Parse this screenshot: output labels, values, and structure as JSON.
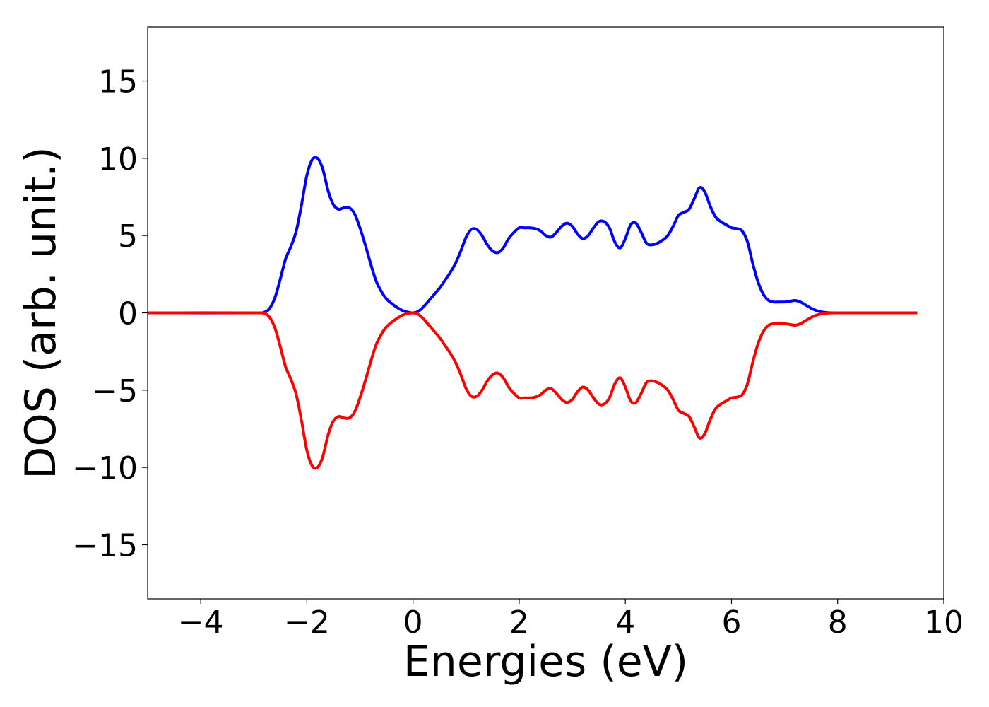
{
  "chart_data": {
    "type": "line",
    "title": "",
    "xlabel": "Energies (eV)",
    "ylabel": "DOS (arb. unit.)",
    "xlim": [
      -5,
      10
    ],
    "ylim": [
      -18.5,
      18.5
    ],
    "xticks": [
      -4,
      -2,
      0,
      2,
      4,
      6,
      8,
      10
    ],
    "xtick_labels": [
      "−4",
      "−2",
      "0",
      "2",
      "4",
      "6",
      "8",
      "10"
    ],
    "yticks": [
      -15,
      -10,
      -5,
      0,
      5,
      10,
      15
    ],
    "ytick_labels": [
      "−15",
      "−10",
      "−5",
      "0",
      "5",
      "10",
      "15"
    ],
    "grid": false,
    "legend": "none",
    "series": [
      {
        "color": "#0000ff",
        "x": [
          -5.0,
          -3.0,
          -2.8,
          -2.7,
          -2.6,
          -2.5,
          -2.4,
          -2.3,
          -2.2,
          -2.1,
          -2.0,
          -1.9,
          -1.8,
          -1.7,
          -1.6,
          -1.5,
          -1.4,
          -1.3,
          -1.2,
          -1.1,
          -1.0,
          -0.9,
          -0.8,
          -0.7,
          -0.6,
          -0.5,
          -0.4,
          -0.3,
          -0.2,
          -0.1,
          0.0,
          0.1,
          0.2,
          0.3,
          0.4,
          0.5,
          0.6,
          0.7,
          0.8,
          0.9,
          1.0,
          1.1,
          1.2,
          1.3,
          1.4,
          1.5,
          1.6,
          1.7,
          1.8,
          1.9,
          2.0,
          2.1,
          2.2,
          2.3,
          2.4,
          2.5,
          2.6,
          2.7,
          2.8,
          2.9,
          3.0,
          3.1,
          3.2,
          3.3,
          3.4,
          3.5,
          3.6,
          3.7,
          3.8,
          3.9,
          4.0,
          4.1,
          4.2,
          4.3,
          4.4,
          4.5,
          4.6,
          4.7,
          4.8,
          4.9,
          5.0,
          5.1,
          5.2,
          5.3,
          5.4,
          5.5,
          5.6,
          5.7,
          5.8,
          5.9,
          6.0,
          6.1,
          6.2,
          6.3,
          6.4,
          6.5,
          6.6,
          6.7,
          6.8,
          6.9,
          7.0,
          7.1,
          7.2,
          7.3,
          7.4,
          7.5,
          7.6,
          7.7,
          7.8,
          8.0,
          9.5
        ],
        "y": [
          0.0,
          0.0,
          0.05,
          0.3,
          1.0,
          2.2,
          3.5,
          4.3,
          5.3,
          7.0,
          8.9,
          9.9,
          10.0,
          9.3,
          7.9,
          7.0,
          6.7,
          6.8,
          6.8,
          6.4,
          5.5,
          4.4,
          3.2,
          2.1,
          1.4,
          0.9,
          0.6,
          0.35,
          0.15,
          0.05,
          0.0,
          0.1,
          0.4,
          0.8,
          1.2,
          1.6,
          2.1,
          2.6,
          3.2,
          4.0,
          4.9,
          5.4,
          5.4,
          5.0,
          4.4,
          4.0,
          3.9,
          4.2,
          4.8,
          5.2,
          5.5,
          5.5,
          5.5,
          5.45,
          5.3,
          5.0,
          4.9,
          5.2,
          5.6,
          5.8,
          5.6,
          5.1,
          4.8,
          5.0,
          5.5,
          5.9,
          5.9,
          5.5,
          4.6,
          4.2,
          4.8,
          5.7,
          5.8,
          5.2,
          4.5,
          4.4,
          4.5,
          4.7,
          5.0,
          5.6,
          6.3,
          6.5,
          6.7,
          7.4,
          8.1,
          7.8,
          6.9,
          6.2,
          5.9,
          5.7,
          5.5,
          5.45,
          5.3,
          4.6,
          3.2,
          2.0,
          1.2,
          0.8,
          0.7,
          0.7,
          0.7,
          0.75,
          0.8,
          0.7,
          0.5,
          0.3,
          0.15,
          0.06,
          0.02,
          0.0,
          0.0
        ]
      },
      {
        "color": "#ff0000",
        "x": [
          -5.0,
          -3.0,
          -2.8,
          -2.7,
          -2.6,
          -2.5,
          -2.4,
          -2.3,
          -2.2,
          -2.1,
          -2.0,
          -1.9,
          -1.8,
          -1.7,
          -1.6,
          -1.5,
          -1.4,
          -1.3,
          -1.2,
          -1.1,
          -1.0,
          -0.9,
          -0.8,
          -0.7,
          -0.6,
          -0.5,
          -0.4,
          -0.3,
          -0.2,
          -0.1,
          0.0,
          0.1,
          0.2,
          0.3,
          0.4,
          0.5,
          0.6,
          0.7,
          0.8,
          0.9,
          1.0,
          1.1,
          1.2,
          1.3,
          1.4,
          1.5,
          1.6,
          1.7,
          1.8,
          1.9,
          2.0,
          2.1,
          2.2,
          2.3,
          2.4,
          2.5,
          2.6,
          2.7,
          2.8,
          2.9,
          3.0,
          3.1,
          3.2,
          3.3,
          3.4,
          3.5,
          3.6,
          3.7,
          3.8,
          3.9,
          4.0,
          4.1,
          4.2,
          4.3,
          4.4,
          4.5,
          4.6,
          4.7,
          4.8,
          4.9,
          5.0,
          5.1,
          5.2,
          5.3,
          5.4,
          5.5,
          5.6,
          5.7,
          5.8,
          5.9,
          6.0,
          6.1,
          6.2,
          6.3,
          6.4,
          6.5,
          6.6,
          6.7,
          6.8,
          6.9,
          7.0,
          7.1,
          7.2,
          7.3,
          7.4,
          7.5,
          7.6,
          7.7,
          7.8,
          8.0,
          9.5
        ],
        "y": [
          0.0,
          0.0,
          -0.05,
          -0.3,
          -1.0,
          -2.2,
          -3.5,
          -4.3,
          -5.3,
          -7.0,
          -8.9,
          -9.9,
          -10.0,
          -9.3,
          -7.9,
          -7.0,
          -6.7,
          -6.8,
          -6.8,
          -6.4,
          -5.5,
          -4.4,
          -3.2,
          -2.1,
          -1.4,
          -0.9,
          -0.6,
          -0.35,
          -0.15,
          -0.05,
          0.0,
          -0.1,
          -0.4,
          -0.8,
          -1.2,
          -1.6,
          -2.1,
          -2.6,
          -3.2,
          -4.0,
          -4.9,
          -5.4,
          -5.4,
          -5.0,
          -4.4,
          -4.0,
          -3.9,
          -4.2,
          -4.8,
          -5.2,
          -5.5,
          -5.5,
          -5.5,
          -5.45,
          -5.3,
          -5.0,
          -4.9,
          -5.2,
          -5.6,
          -5.8,
          -5.6,
          -5.1,
          -4.8,
          -5.0,
          -5.5,
          -5.9,
          -5.9,
          -5.5,
          -4.6,
          -4.2,
          -4.8,
          -5.7,
          -5.8,
          -5.2,
          -4.5,
          -4.4,
          -4.5,
          -4.7,
          -5.0,
          -5.6,
          -6.3,
          -6.5,
          -6.7,
          -7.4,
          -8.1,
          -7.8,
          -6.9,
          -6.2,
          -5.9,
          -5.7,
          -5.5,
          -5.45,
          -5.3,
          -4.6,
          -3.2,
          -2.0,
          -1.2,
          -0.8,
          -0.7,
          -0.7,
          -0.7,
          -0.75,
          -0.8,
          -0.7,
          -0.5,
          -0.3,
          -0.15,
          -0.06,
          -0.02,
          0.0,
          0.0
        ]
      }
    ]
  }
}
